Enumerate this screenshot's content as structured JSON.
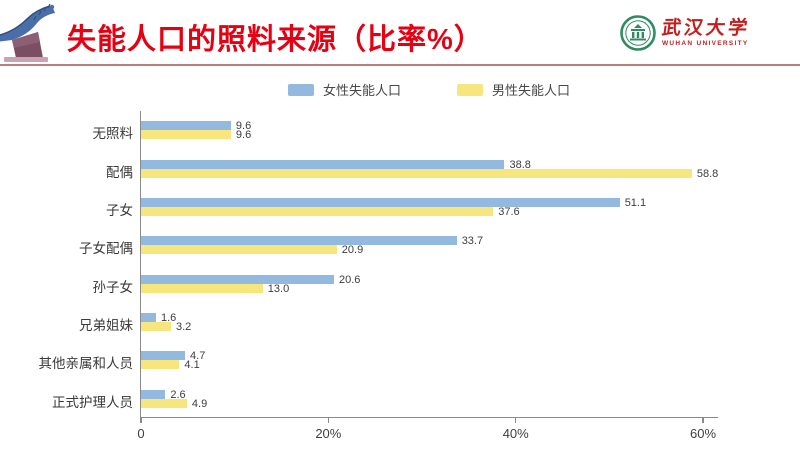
{
  "header": {
    "title": "失能人口的照料来源（比率%）",
    "title_color": "#e60012",
    "divider_color": "#bd7e7a",
    "logo": {
      "name_cn": "武汉大学",
      "name_en": "WUHAN UNIVERSITY"
    }
  },
  "chart_data": {
    "type": "bar",
    "orientation": "horizontal",
    "title": "失能人口的照料来源（比率%）",
    "categories": [
      "无照料",
      "配偶",
      "子女",
      "子女配偶",
      "孙子女",
      "兄弟姐妹",
      "其他亲属和人员",
      "正式护理人员"
    ],
    "series": [
      {
        "name": "女性失能人口",
        "color": "#93b9df",
        "values": [
          9.6,
          38.8,
          51.1,
          33.7,
          20.6,
          1.6,
          4.7,
          2.6
        ]
      },
      {
        "name": "男性失能人口",
        "color": "#f7e57e",
        "values": [
          9.6,
          58.8,
          37.6,
          20.9,
          13.0,
          3.2,
          4.1,
          4.9
        ]
      }
    ],
    "value_labels": true,
    "value_decimals": 1,
    "x_ticks": [
      {
        "value": 0,
        "label": "0"
      },
      {
        "value": 20,
        "label": "20%"
      },
      {
        "value": 40,
        "label": "40%"
      },
      {
        "value": 60,
        "label": "60%"
      }
    ],
    "x_max": 61.7,
    "grid": false,
    "legend_position": "top-center"
  }
}
